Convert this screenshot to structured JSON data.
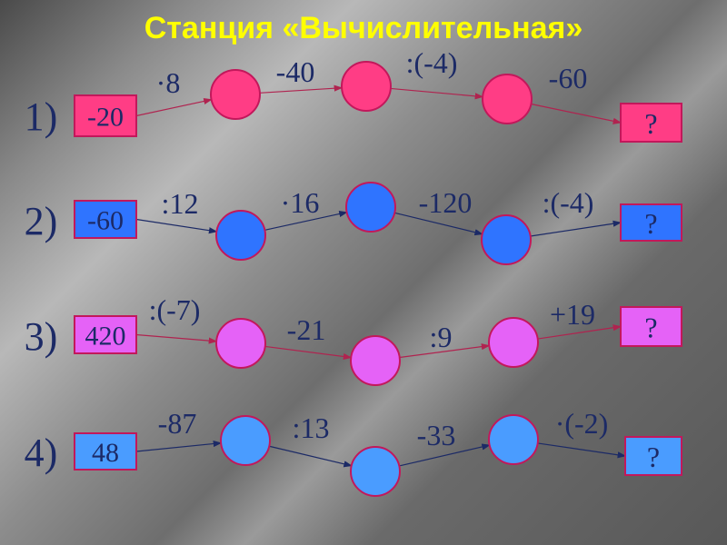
{
  "title": "Станция «Вычислительная»",
  "stroke_color": "#c2185b",
  "rows": [
    {
      "label": "1)",
      "start": "-20",
      "result": "?",
      "color": "#ff3d85",
      "line_color": "#b0234f",
      "ops": [
        "·8",
        "-40",
        ":(-4)",
        "-60"
      ]
    },
    {
      "label": "2)",
      "start": "-60",
      "result": "?",
      "color": "#2f74ff",
      "line_color": "#1c2a66",
      "ops": [
        ":12",
        "·16",
        "-120",
        ":(-4)"
      ]
    },
    {
      "label": "3)",
      "start": "420",
      "result": "?",
      "color": "#e562f7",
      "line_color": "#b0234f",
      "ops": [
        ":(-7)",
        "-21",
        ":9",
        "+19"
      ]
    },
    {
      "label": "4)",
      "start": "48",
      "result": "?",
      "color": "#4a9cff",
      "line_color": "#1c2a66",
      "ops": [
        "-87",
        ":13",
        "-33",
        "·(-2)"
      ]
    }
  ]
}
